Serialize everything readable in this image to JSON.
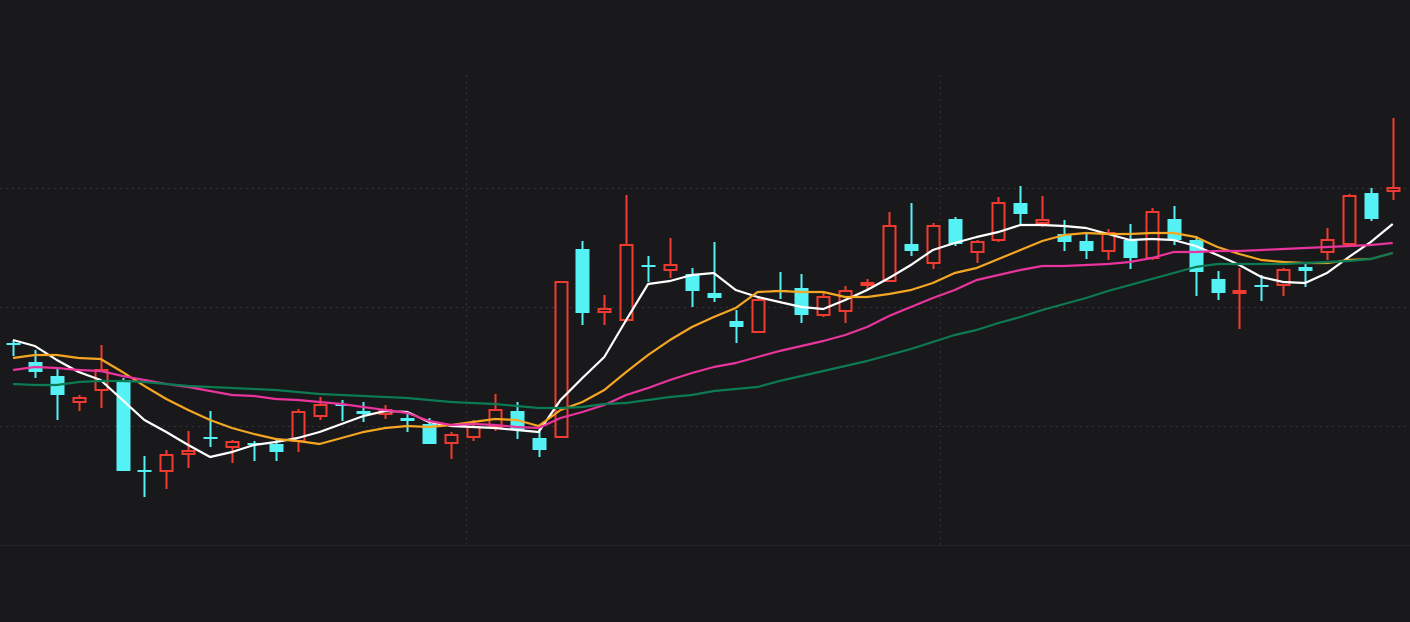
{
  "chart_data": {
    "type": "candlestick",
    "categories": [
      null,
      null,
      null,
      null,
      null,
      null,
      null,
      null,
      null,
      null,
      null,
      null,
      null,
      null,
      null,
      null,
      null,
      null,
      null,
      null,
      null,
      null,
      null,
      null,
      null,
      null,
      null,
      null,
      null,
      null,
      null,
      null,
      null,
      null,
      null,
      null,
      null,
      null,
      null,
      null,
      null,
      null,
      null,
      null,
      null,
      null,
      null,
      null,
      null,
      null,
      null,
      null,
      null,
      null,
      null,
      null,
      null,
      null,
      null,
      null,
      null,
      null,
      null,
      null
    ],
    "open": [
      202,
      183,
      169,
      143,
      155,
      165,
      75,
      74,
      91,
      108,
      98,
      102,
      101,
      104,
      129,
      141,
      134,
      131,
      127,
      121,
      102,
      108,
      118,
      134,
      107,
      108,
      296,
      233,
      225,
      280,
      275,
      271,
      252,
      224,
      213,
      255,
      257,
      230,
      234,
      260,
      264,
      301,
      282,
      326,
      293,
      305,
      342,
      322,
      311,
      304,
      294,
      305,
      287,
      326,
      305,
      266,
      253,
      260,
      260,
      278,
      293,
      301,
      352,
      354
    ],
    "high": [
      205,
      195,
      177,
      150,
      200,
      167,
      89,
      95,
      114,
      134,
      105,
      104,
      105,
      136,
      148,
      145,
      143,
      140,
      133,
      127,
      113,
      125,
      151,
      143,
      120,
      263,
      304,
      250,
      350,
      289,
      307,
      277,
      303,
      235,
      249,
      273,
      271,
      254,
      259,
      266,
      333,
      342,
      322,
      328,
      305,
      348,
      359,
      349,
      325,
      311,
      316,
      321,
      337,
      339,
      309,
      274,
      277,
      270,
      277,
      281,
      317,
      351,
      357,
      427
    ],
    "low": [
      189,
      167,
      125,
      134,
      137,
      74,
      48,
      56,
      77,
      98,
      82,
      84,
      84,
      93,
      125,
      124,
      123,
      126,
      113,
      101,
      86,
      104,
      114,
      106,
      88,
      107,
      220,
      220,
      223,
      263,
      267,
      238,
      243,
      202,
      212,
      246,
      222,
      228,
      222,
      255,
      264,
      289,
      276,
      299,
      282,
      303,
      319,
      318,
      294,
      286,
      285,
      276,
      285,
      300,
      249,
      245,
      216,
      244,
      249,
      258,
      285,
      299,
      324,
      345
    ],
    "close": [
      200,
      173,
      150,
      147,
      175,
      74,
      73,
      90,
      94,
      106,
      103,
      101,
      93,
      133,
      140,
      139,
      131,
      135,
      124,
      101,
      110,
      118,
      135,
      115,
      95,
      263,
      232,
      236,
      300,
      278,
      280,
      254,
      247,
      218,
      245,
      253,
      230,
      248,
      254,
      262,
      319,
      294,
      319,
      301,
      303,
      342,
      331,
      325,
      303,
      294,
      312,
      287,
      333,
      305,
      273,
      252,
      254,
      259,
      275,
      274,
      305,
      349,
      326,
      357
    ],
    "up_color": "#f23b30",
    "down_color": "#55f2f5",
    "lines": [
      {
        "color": "#ffffff",
        "values": [
          205,
          199,
          185,
          173,
          165,
          145,
          125,
          113,
          100,
          88,
          93,
          100,
          103,
          107,
          113,
          121,
          129,
          134,
          133,
          123,
          119,
          118,
          117,
          115,
          113,
          145,
          167,
          188,
          225,
          261,
          264,
          270,
          272,
          255,
          248,
          243,
          238,
          236,
          245,
          255,
          267,
          280,
          295,
          302,
          308,
          313,
          320,
          320,
          319,
          317,
          311,
          305,
          306,
          305,
          299,
          290,
          280,
          268,
          263,
          262,
          272,
          288,
          303,
          321
        ]
      },
      {
        "color": "#f5a623",
        "values": [
          187,
          190,
          190,
          187,
          186,
          173,
          159,
          146,
          135,
          125,
          117,
          111,
          106,
          104,
          101,
          107,
          113,
          117,
          119,
          118,
          120,
          123,
          126,
          125,
          119,
          135,
          143,
          155,
          173,
          190,
          205,
          218,
          228,
          237,
          253,
          254,
          253,
          253,
          248,
          248,
          251,
          255,
          262,
          272,
          277,
          286,
          295,
          304,
          310,
          312,
          311,
          311,
          312,
          312,
          308,
          298,
          291,
          285,
          283,
          282,
          282,
          285,
          286,
          292
        ]
      },
      {
        "color": "#e8349c",
        "values": [
          175,
          178,
          177,
          175,
          174,
          169,
          165,
          161,
          158,
          154,
          150,
          149,
          146,
          145,
          143,
          141,
          138,
          135,
          132,
          124,
          120,
          121,
          120,
          118,
          117,
          127,
          133,
          140,
          150,
          157,
          165,
          172,
          178,
          182,
          188,
          194,
          199,
          204,
          210,
          218,
          229,
          238,
          247,
          255,
          265,
          270,
          275,
          279,
          279,
          280,
          281,
          283,
          287,
          293,
          293,
          294,
          294,
          295,
          296,
          297,
          298,
          299,
          300,
          302
        ]
      },
      {
        "color": "#0c7a52",
        "values": [
          161,
          160,
          160,
          163,
          164,
          164,
          163,
          161,
          159,
          158,
          157,
          156,
          155,
          153,
          151,
          150,
          149,
          148,
          147,
          145,
          143,
          142,
          141,
          139,
          137,
          137,
          138,
          141,
          142,
          145,
          148,
          150,
          154,
          156,
          158,
          164,
          169,
          174,
          179,
          184,
          190,
          196,
          203,
          210,
          215,
          222,
          228,
          235,
          241,
          247,
          254,
          260,
          266,
          272,
          278,
          281,
          281,
          281,
          281,
          282,
          283,
          284,
          286,
          292
        ]
      }
    ],
    "ylim": [
      0,
      545
    ],
    "yticks": [
      119,
      238,
      357
    ],
    "grid": true
  }
}
